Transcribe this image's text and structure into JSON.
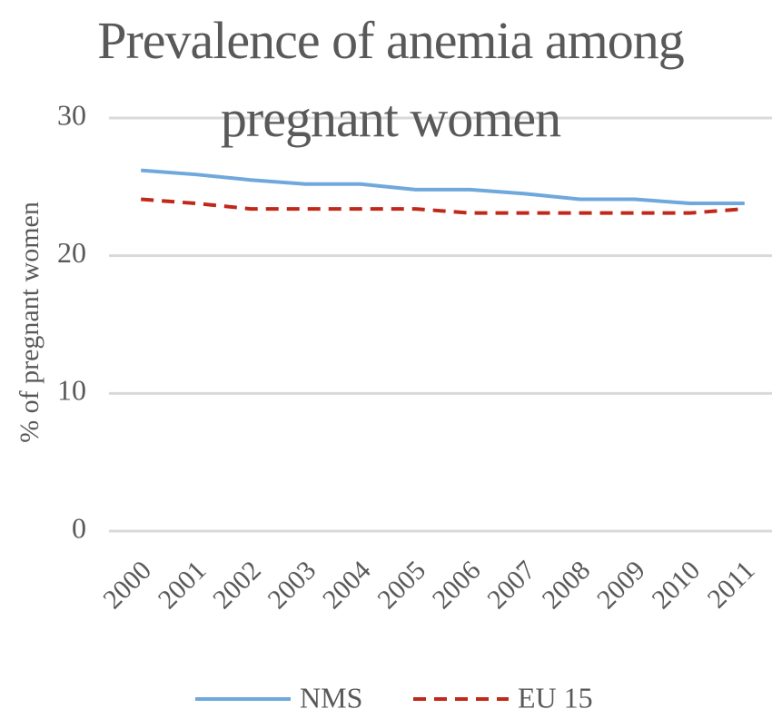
{
  "chart_data": {
    "type": "line",
    "title": "Prevalence of anemia among pregnant women",
    "y_label": "% of pregnant women",
    "categories": [
      "2000",
      "2001",
      "2002",
      "2003",
      "2004",
      "2005",
      "2006",
      "2007",
      "2008",
      "2009",
      "2010",
      "2011"
    ],
    "series": [
      {
        "name": "NMS",
        "color": "#6fa8dc",
        "dashed": false,
        "values": [
          26.2,
          25.9,
          25.5,
          25.2,
          25.2,
          24.8,
          24.8,
          24.5,
          24.1,
          24.1,
          23.8,
          23.8
        ]
      },
      {
        "name": "EU 15",
        "color": "#c0281a",
        "dashed": true,
        "values": [
          24.1,
          23.8,
          23.4,
          23.4,
          23.4,
          23.4,
          23.1,
          23.1,
          23.1,
          23.1,
          23.1,
          23.4
        ]
      }
    ],
    "ylim": [
      0,
      30
    ],
    "yticks": [
      0,
      10,
      20,
      30
    ],
    "grid": true,
    "legend": "bottom"
  }
}
